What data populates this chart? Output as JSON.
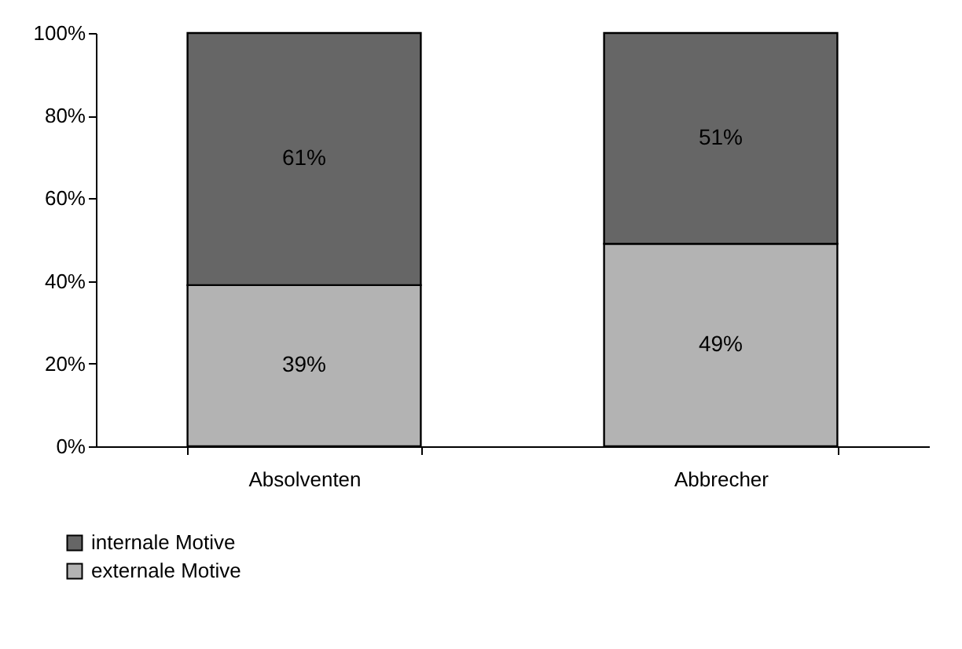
{
  "chart_data": {
    "type": "bar",
    "stacked": true,
    "categories": [
      "Absolventen",
      "Abbrecher"
    ],
    "series": [
      {
        "name": "externale Motive",
        "color": "#b3b3b3",
        "values": [
          39,
          49
        ],
        "value_labels": [
          "39%",
          "49%"
        ]
      },
      {
        "name": "internale Motive",
        "color": "#666666",
        "values": [
          61,
          51
        ],
        "value_labels": [
          "61%",
          "51%"
        ]
      }
    ],
    "ylim": [
      0,
      100
    ],
    "yticks": [
      {
        "value": 0,
        "label": "0%"
      },
      {
        "value": 20,
        "label": "20%"
      },
      {
        "value": 40,
        "label": "40%"
      },
      {
        "value": 60,
        "label": "60%"
      },
      {
        "value": 80,
        "label": "80%"
      },
      {
        "value": 100,
        "label": "100%"
      }
    ],
    "grid": false,
    "legend": "bottom left"
  }
}
